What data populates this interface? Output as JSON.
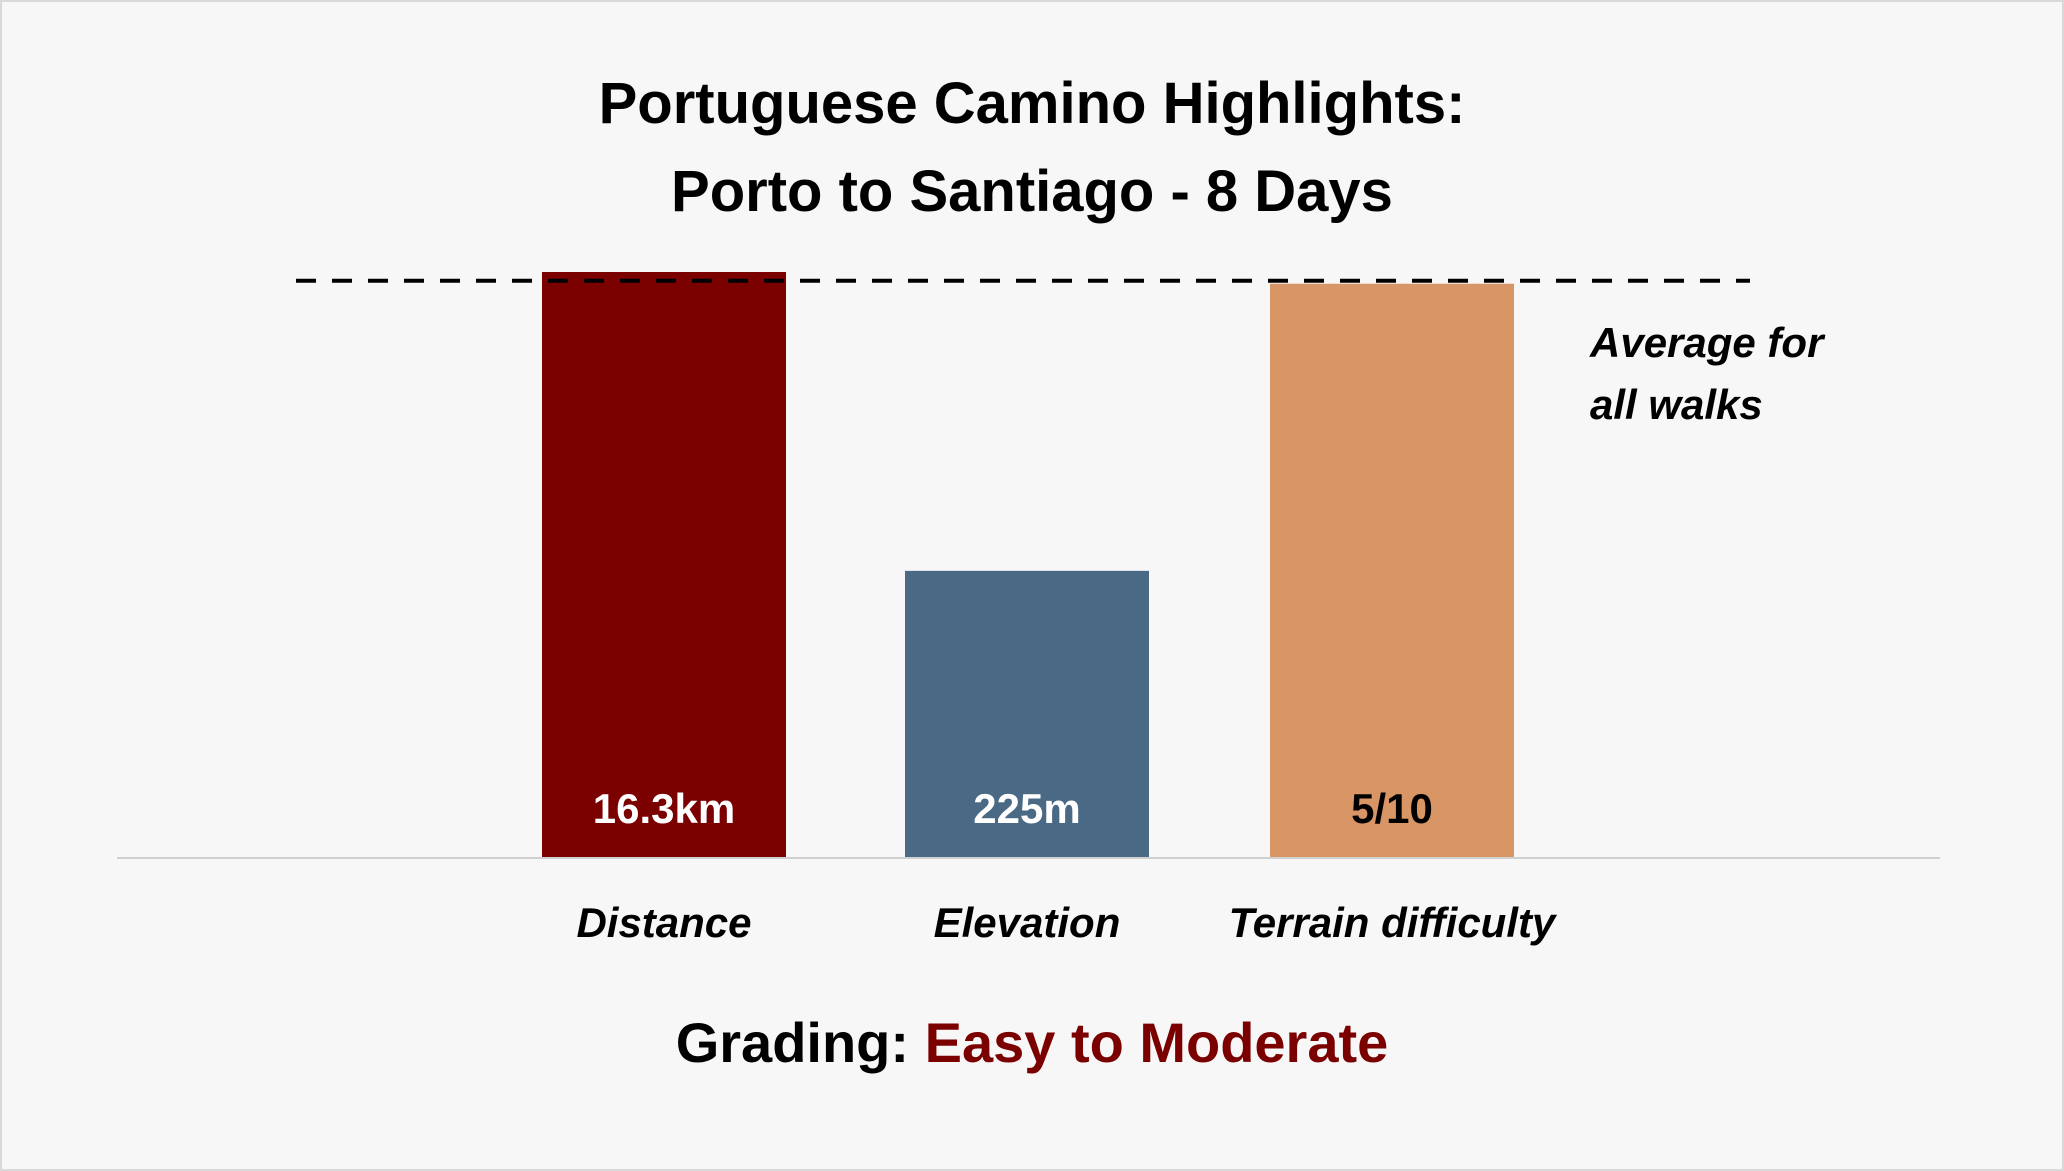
{
  "title_lines": [
    "Portuguese Camino Highlights:",
    "Porto to Santiago - 8 Days"
  ],
  "average_note_lines": [
    "Average for",
    "all walks"
  ],
  "grading": {
    "label": "Grading:",
    "value": "Easy to Moderate"
  },
  "chart_data": {
    "type": "bar",
    "categories": [
      "Distance",
      "Elevation",
      "Terrain difficulty"
    ],
    "value_labels": [
      "16.3km",
      "225m",
      "5/10"
    ],
    "values_relative_to_average": [
      1.0,
      0.49,
      0.98
    ],
    "reference_line": {
      "value": 0.98,
      "style": "dashed"
    },
    "bar_colors": [
      "#7b0000",
      "#4a6984",
      "#d89565"
    ],
    "label_colors": [
      "#ffffff",
      "#ffffff",
      "#000000"
    ],
    "ylim": [
      0,
      1.0
    ],
    "grid": false,
    "legend": "none"
  }
}
